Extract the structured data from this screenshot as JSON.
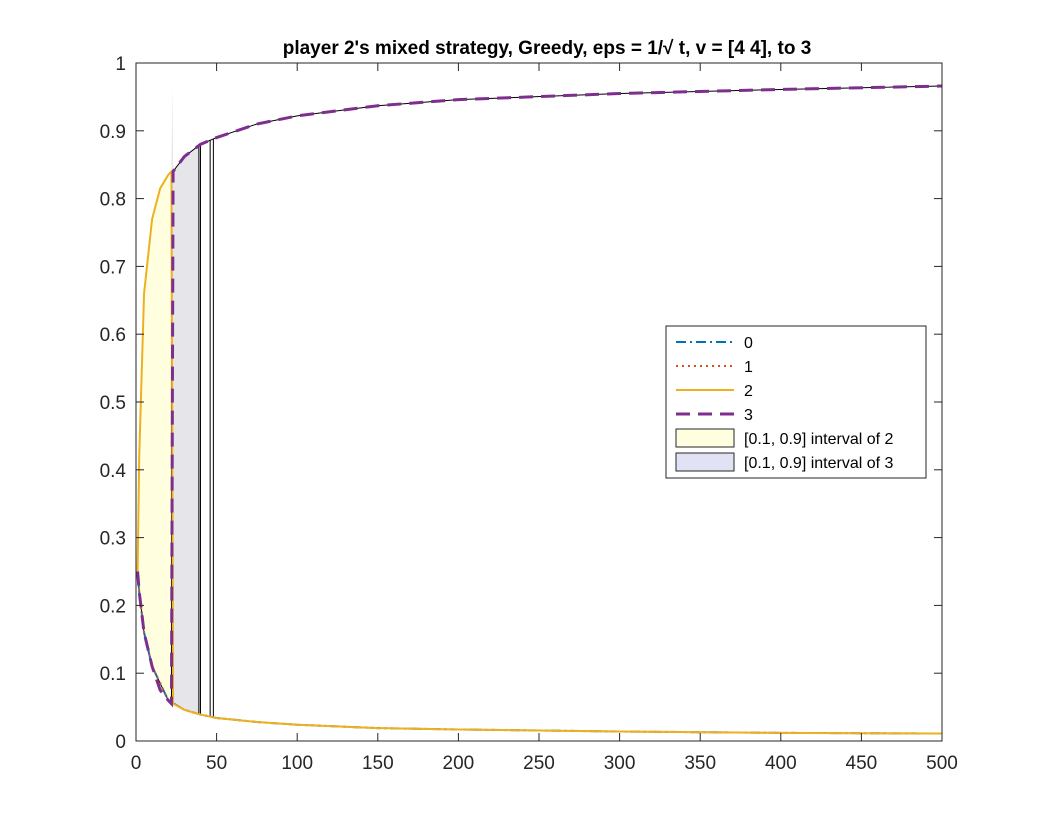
{
  "chart_data": {
    "type": "line",
    "title": "player 2's mixed strategy, Greedy, eps = 1/√ t, v = [4  4], to 3",
    "xlabel": "",
    "ylabel": "",
    "xlim": [
      0,
      500
    ],
    "ylim": [
      0,
      1
    ],
    "x_ticks": [
      "0",
      "50",
      "100",
      "150",
      "200",
      "250",
      "300",
      "350",
      "400",
      "450",
      "500"
    ],
    "y_ticks": [
      "0",
      "0.1",
      "0.2",
      "0.3",
      "0.4",
      "0.5",
      "0.6",
      "0.7",
      "0.8",
      "0.9",
      "1"
    ],
    "grid": false,
    "legend_position": "center-right",
    "series": [
      {
        "name": "0",
        "color": "#0072BD",
        "style": "dash-dot",
        "x": [
          1,
          2,
          5,
          10,
          20,
          30,
          40,
          50,
          75,
          100,
          150,
          200,
          300,
          400,
          500
        ],
        "y": [
          0.25,
          0.22,
          0.16,
          0.11,
          0.06,
          0.046,
          0.039,
          0.034,
          0.028,
          0.024,
          0.019,
          0.017,
          0.014,
          0.012,
          0.011
        ]
      },
      {
        "name": "1",
        "color": "#D95319",
        "style": "dotted",
        "x": [
          1,
          2,
          5,
          10,
          20,
          30,
          40,
          50,
          75,
          100,
          150,
          200,
          300,
          400,
          500
        ],
        "y": [
          0.25,
          0.22,
          0.16,
          0.11,
          0.06,
          0.046,
          0.039,
          0.034,
          0.028,
          0.024,
          0.019,
          0.017,
          0.014,
          0.012,
          0.011
        ]
      },
      {
        "name": "2",
        "color": "#EDB120",
        "style": "solid",
        "x": [
          1,
          2,
          5,
          10,
          15,
          20,
          22,
          23,
          30,
          40,
          50,
          75,
          100,
          150,
          200,
          300,
          400,
          500
        ],
        "y": [
          0.25,
          0.42,
          0.66,
          0.77,
          0.815,
          0.835,
          0.84,
          0.055,
          0.046,
          0.039,
          0.034,
          0.028,
          0.024,
          0.019,
          0.017,
          0.014,
          0.012,
          0.011
        ]
      },
      {
        "name": "3",
        "color": "#7E2F8E",
        "style": "dashed",
        "x": [
          1,
          2,
          5,
          10,
          15,
          20,
          22,
          23,
          30,
          40,
          50,
          75,
          100,
          150,
          200,
          300,
          400,
          500
        ],
        "y": [
          0.25,
          0.22,
          0.16,
          0.11,
          0.075,
          0.06,
          0.055,
          0.84,
          0.862,
          0.88,
          0.89,
          0.91,
          0.922,
          0.937,
          0.946,
          0.955,
          0.961,
          0.966
        ]
      }
    ],
    "intervals": [
      {
        "name": "[0.1, 0.9] interval of 2",
        "fill": "#FFFFE0",
        "x_start": 0,
        "x_end": 22
      },
      {
        "name": "[0.1, 0.9] interval of 3",
        "fill": "#E2E2F5",
        "x_start": 0,
        "x_end": 40
      }
    ],
    "vertical_lines_x": [
      22,
      39,
      40,
      46,
      48
    ]
  }
}
